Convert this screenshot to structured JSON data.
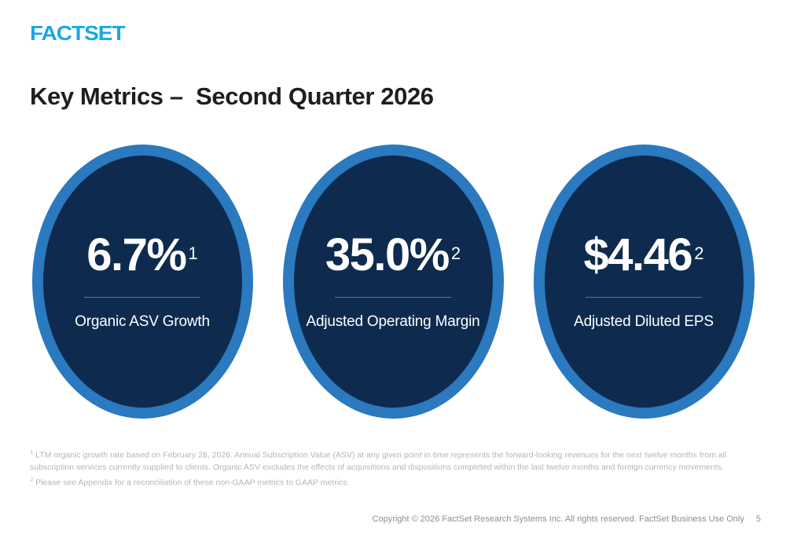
{
  "brand": {
    "logo_text": "FACTSET",
    "logo_color": "#18A8E6"
  },
  "title": "Key Metrics –  Second Quarter 2026",
  "metrics": [
    {
      "value": "6.7%",
      "superscript": "1",
      "label": "Organic ASV Growth"
    },
    {
      "value": "35.0%",
      "superscript": "2",
      "label": "Adjusted Operating Margin"
    },
    {
      "value": "$4.46",
      "superscript": "2",
      "label": "Adjusted Diluted EPS"
    }
  ],
  "footnotes": [
    {
      "marker": "1",
      "text": "LTM organic growth rate based on February 28, 2026. Annual Subscription Value (ASV) at any given point in time represents the forward-looking revenues for the next twelve months from all subscription services currently supplied to clients. Organic ASV excludes the effects of acquisitions and dispositions completed within the last twelve months and foreign currency movements."
    },
    {
      "marker": "2",
      "text": "Please see Appendix for a reconciliation of these non-GAAP metrics to GAAP metrics."
    }
  ],
  "footer": {
    "copyright": "Copyright © 2026 FactSet Research Systems Inc. All rights reserved. FactSet Business Use Only",
    "page_number": "5"
  },
  "colors": {
    "logo_blue": "#18A8E6",
    "ring_blue": "#2B79BE",
    "navy_fill": "#0E2B4F",
    "divider_blue": "#54789F",
    "title_text": "#1E1E1E",
    "footnote_gray": "#B6B6B6",
    "footer_gray": "#8E8E8E"
  }
}
